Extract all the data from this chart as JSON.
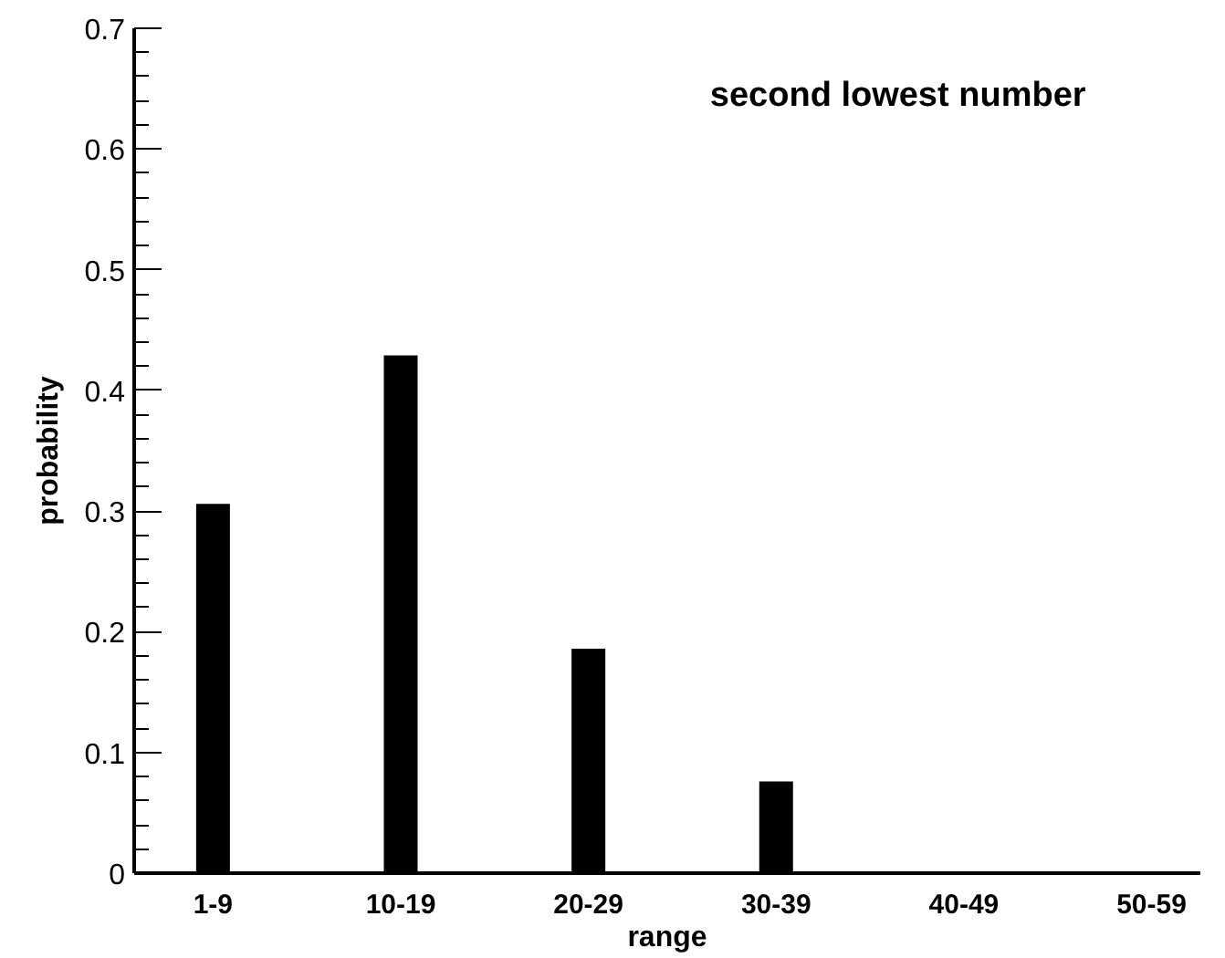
{
  "chart_data": {
    "type": "bar",
    "title": "second lowest number",
    "xlabel": "range",
    "ylabel": "probability",
    "categories": [
      "1-9",
      "10-19",
      "20-29",
      "30-39",
      "40-49",
      "50-59"
    ],
    "values": [
      0.306,
      0.429,
      0.186,
      0.076,
      0,
      0
    ],
    "color": "#000000",
    "ylim": [
      0,
      0.7
    ],
    "yticks": [
      0,
      0.1,
      0.2,
      0.3,
      0.4,
      0.5,
      0.6,
      0.7
    ],
    "grid": false
  }
}
